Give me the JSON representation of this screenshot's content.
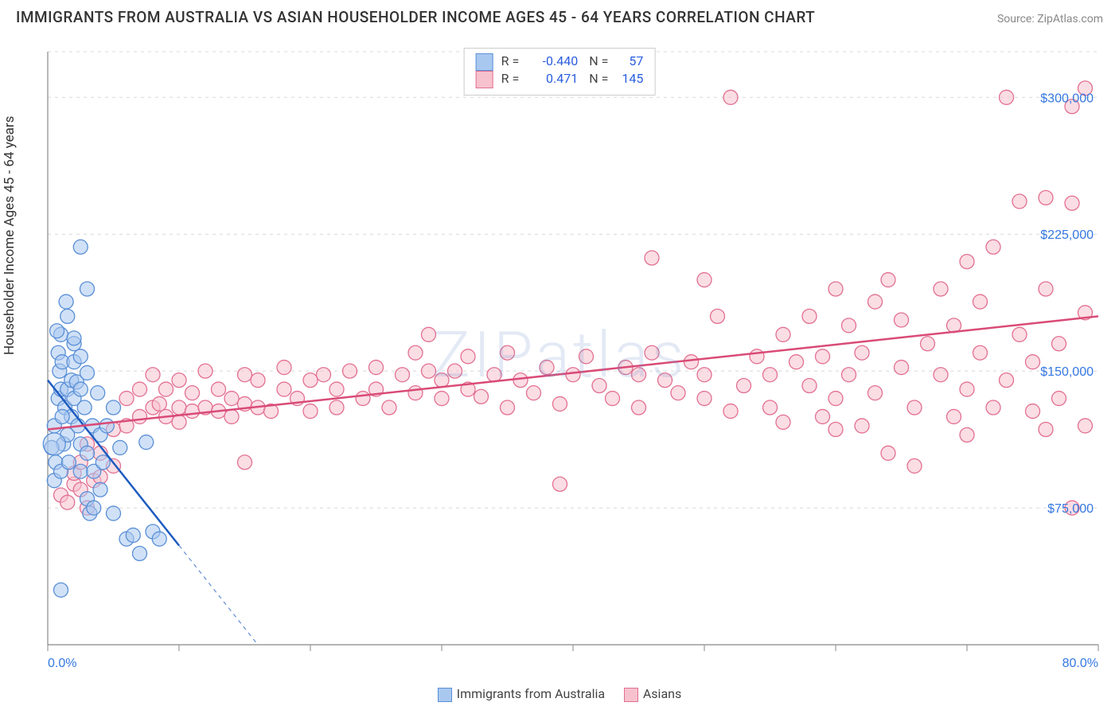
{
  "title": "IMMIGRANTS FROM AUSTRALIA VS ASIAN HOUSEHOLDER INCOME AGES 45 - 64 YEARS CORRELATION CHART",
  "source": "Source: ZipAtlas.com",
  "watermark": "ZIPatlas",
  "y_axis_label": "Householder Income Ages 45 - 64 years",
  "chart": {
    "type": "scatter",
    "xlim": [
      0,
      80
    ],
    "ylim": [
      0,
      325000
    ],
    "x_ticks_major": [
      0,
      10,
      20,
      30,
      40,
      50,
      60,
      70,
      80
    ],
    "x_tick_labels": [
      {
        "pos": 0,
        "label": "0.0%"
      },
      {
        "pos": 80,
        "label": "80.0%"
      }
    ],
    "y_tick_labels": [
      {
        "pos": 75000,
        "label": "$75,000"
      },
      {
        "pos": 150000,
        "label": "$150,000"
      },
      {
        "pos": 225000,
        "label": "$225,000"
      },
      {
        "pos": 300000,
        "label": "$300,000"
      }
    ],
    "y_gridlines": [
      75000,
      150000,
      225000,
      300000,
      325000
    ],
    "grid_color": "#d8d8d8",
    "axis_color": "#888888",
    "background_color": "#ffffff",
    "marker_radius": 9,
    "marker_radius_large": 14,
    "series": [
      {
        "key": "aus",
        "name": "Immigrants from Australia",
        "fill": "#a9c8f0",
        "stroke": "#5a8fd6",
        "line_color": "#1e5cbf",
        "r": -0.44,
        "n": 57,
        "regression": {
          "x1": 0,
          "y1": 145000,
          "x2": 16,
          "y2": 0
        },
        "solid_regression_x_end": 10,
        "points": [
          [
            0.5,
            120000
          ],
          [
            0.5,
            90000
          ],
          [
            0.6,
            100000
          ],
          [
            0.8,
            135000
          ],
          [
            0.8,
            160000
          ],
          [
            0.9,
            150000
          ],
          [
            1.0,
            140000
          ],
          [
            1.0,
            170000
          ],
          [
            1.0,
            95000
          ],
          [
            1.1,
            155000
          ],
          [
            1.2,
            110000
          ],
          [
            1.3,
            130000
          ],
          [
            1.5,
            140000
          ],
          [
            1.5,
            180000
          ],
          [
            1.5,
            115000
          ],
          [
            1.6,
            100000
          ],
          [
            1.8,
            145000
          ],
          [
            1.8,
            125000
          ],
          [
            2.0,
            135000
          ],
          [
            2.0,
            165000
          ],
          [
            2.0,
            155000
          ],
          [
            2.0,
            168000
          ],
          [
            2.2,
            144000
          ],
          [
            2.3,
            120000
          ],
          [
            2.5,
            95000
          ],
          [
            2.5,
            110000
          ],
          [
            2.5,
            158000
          ],
          [
            2.5,
            140000
          ],
          [
            2.8,
            130000
          ],
          [
            3.0,
            105000
          ],
          [
            3.0,
            149000
          ],
          [
            3.0,
            80000
          ],
          [
            3.2,
            72000
          ],
          [
            3.4,
            120000
          ],
          [
            3.5,
            95000
          ],
          [
            3.5,
            75000
          ],
          [
            2.5,
            218000
          ],
          [
            3.0,
            195000
          ],
          [
            4.0,
            115000
          ],
          [
            4.0,
            85000
          ],
          [
            4.5,
            120000
          ],
          [
            5.0,
            72000
          ],
          [
            5.0,
            130000
          ],
          [
            5.5,
            108000
          ],
          [
            6.0,
            58000
          ],
          [
            6.5,
            60000
          ],
          [
            7.0,
            50000
          ],
          [
            7.5,
            111000
          ],
          [
            8.0,
            62000
          ],
          [
            8.5,
            58000
          ],
          [
            1.4,
            188000
          ],
          [
            0.7,
            172000
          ],
          [
            0.3,
            108000
          ],
          [
            1.0,
            30000
          ],
          [
            1.1,
            125000
          ],
          [
            3.8,
            138000
          ],
          [
            4.2,
            100000
          ]
        ],
        "large_point": [
          0.5,
          110000
        ]
      },
      {
        "key": "asian",
        "name": "Asians",
        "fill": "#f7c1cd",
        "stroke": "#e27091",
        "line_color": "#d94b77",
        "r": 0.471,
        "n": 145,
        "regression": {
          "x1": 0,
          "y1": 118000,
          "x2": 80,
          "y2": 180000
        },
        "points": [
          [
            1.0,
            82000
          ],
          [
            1.5,
            78000
          ],
          [
            2.0,
            88000
          ],
          [
            2.0,
            94000
          ],
          [
            2.5,
            85000
          ],
          [
            2.5,
            100000
          ],
          [
            3.0,
            75000
          ],
          [
            3.0,
            110000
          ],
          [
            3.5,
            90000
          ],
          [
            4.0,
            105000
          ],
          [
            4.0,
            92000
          ],
          [
            5.0,
            98000
          ],
          [
            5.0,
            118000
          ],
          [
            6.0,
            135000
          ],
          [
            6.0,
            120000
          ],
          [
            7.0,
            140000
          ],
          [
            7.0,
            125000
          ],
          [
            8.0,
            130000
          ],
          [
            8.0,
            148000
          ],
          [
            8.5,
            132000
          ],
          [
            9.0,
            125000
          ],
          [
            9.0,
            140000
          ],
          [
            10.0,
            130000
          ],
          [
            10.0,
            122000
          ],
          [
            10.0,
            145000
          ],
          [
            11.0,
            128000
          ],
          [
            11.0,
            138000
          ],
          [
            12.0,
            130000
          ],
          [
            12.0,
            150000
          ],
          [
            13.0,
            128000
          ],
          [
            13.0,
            140000
          ],
          [
            14.0,
            125000
          ],
          [
            14.0,
            135000
          ],
          [
            15.0,
            100000
          ],
          [
            15.0,
            132000
          ],
          [
            15.0,
            148000
          ],
          [
            16.0,
            130000
          ],
          [
            16.0,
            145000
          ],
          [
            17.0,
            128000
          ],
          [
            18.0,
            140000
          ],
          [
            18.0,
            152000
          ],
          [
            19.0,
            135000
          ],
          [
            20.0,
            128000
          ],
          [
            20.0,
            145000
          ],
          [
            21.0,
            148000
          ],
          [
            22.0,
            140000
          ],
          [
            22.0,
            130000
          ],
          [
            23.0,
            150000
          ],
          [
            24.0,
            135000
          ],
          [
            25.0,
            140000
          ],
          [
            25.0,
            152000
          ],
          [
            26.0,
            130000
          ],
          [
            27.0,
            148000
          ],
          [
            28.0,
            138000
          ],
          [
            28.0,
            160000
          ],
          [
            29.0,
            150000
          ],
          [
            29.0,
            170000
          ],
          [
            30.0,
            135000
          ],
          [
            30.0,
            145000
          ],
          [
            31.0,
            150000
          ],
          [
            32.0,
            140000
          ],
          [
            32.0,
            158000
          ],
          [
            33.0,
            136000
          ],
          [
            34.0,
            148000
          ],
          [
            35.0,
            130000
          ],
          [
            35.0,
            160000
          ],
          [
            36.0,
            145000
          ],
          [
            37.0,
            138000
          ],
          [
            38.0,
            152000
          ],
          [
            39.0,
            132000
          ],
          [
            39.0,
            88000
          ],
          [
            40.0,
            148000
          ],
          [
            41.0,
            158000
          ],
          [
            42.0,
            142000
          ],
          [
            43.0,
            135000
          ],
          [
            44.0,
            152000
          ],
          [
            45.0,
            148000
          ],
          [
            45.0,
            130000
          ],
          [
            46.0,
            160000
          ],
          [
            46.0,
            212000
          ],
          [
            47.0,
            145000
          ],
          [
            48.0,
            138000
          ],
          [
            49.0,
            155000
          ],
          [
            50.0,
            148000
          ],
          [
            50.0,
            135000
          ],
          [
            50.0,
            200000
          ],
          [
            51.0,
            180000
          ],
          [
            52.0,
            128000
          ],
          [
            52.0,
            300000
          ],
          [
            53.0,
            142000
          ],
          [
            54.0,
            158000
          ],
          [
            55.0,
            130000
          ],
          [
            55.0,
            148000
          ],
          [
            56.0,
            170000
          ],
          [
            56.0,
            122000
          ],
          [
            57.0,
            155000
          ],
          [
            58.0,
            142000
          ],
          [
            58.0,
            180000
          ],
          [
            59.0,
            125000
          ],
          [
            59.0,
            158000
          ],
          [
            60.0,
            135000
          ],
          [
            60.0,
            195000
          ],
          [
            60.0,
            118000
          ],
          [
            61.0,
            148000
          ],
          [
            61.0,
            175000
          ],
          [
            62.0,
            120000
          ],
          [
            62.0,
            160000
          ],
          [
            63.0,
            188000
          ],
          [
            63.0,
            138000
          ],
          [
            64.0,
            200000
          ],
          [
            64.0,
            105000
          ],
          [
            65.0,
            152000
          ],
          [
            65.0,
            178000
          ],
          [
            66.0,
            130000
          ],
          [
            66.0,
            98000
          ],
          [
            67.0,
            165000
          ],
          [
            68.0,
            148000
          ],
          [
            68.0,
            195000
          ],
          [
            69.0,
            125000
          ],
          [
            69.0,
            175000
          ],
          [
            70.0,
            140000
          ],
          [
            70.0,
            210000
          ],
          [
            70.0,
            115000
          ],
          [
            71.0,
            160000
          ],
          [
            71.0,
            188000
          ],
          [
            72.0,
            218000
          ],
          [
            72.0,
            130000
          ],
          [
            73.0,
            145000
          ],
          [
            73.0,
            300000
          ],
          [
            74.0,
            170000
          ],
          [
            74.0,
            243000
          ],
          [
            75.0,
            128000
          ],
          [
            75.0,
            155000
          ],
          [
            76.0,
            195000
          ],
          [
            76.0,
            245000
          ],
          [
            76.0,
            118000
          ],
          [
            77.0,
            135000
          ],
          [
            77.0,
            165000
          ],
          [
            78.0,
            295000
          ],
          [
            78.0,
            242000
          ],
          [
            78.0,
            75000
          ],
          [
            79.0,
            305000
          ],
          [
            79.0,
            182000
          ],
          [
            79.0,
            120000
          ]
        ]
      }
    ]
  },
  "bottom_legend": [
    {
      "key": "aus",
      "label": "Immigrants from Australia"
    },
    {
      "key": "asian",
      "label": "Asians"
    }
  ]
}
